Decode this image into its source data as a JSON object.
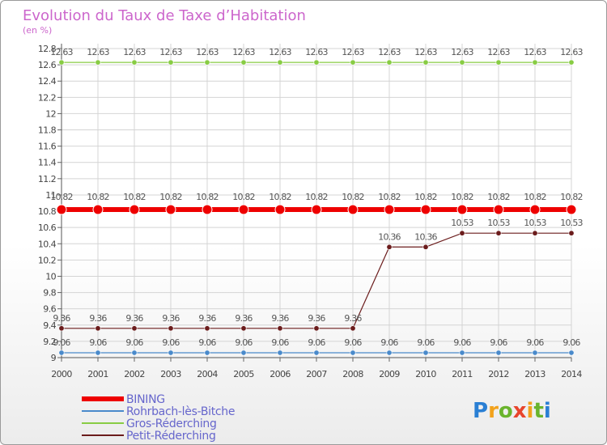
{
  "chart_data": {
    "type": "line",
    "title": "Evolution du Taux de Taxe d’Habitation",
    "subtitle": "(en %)",
    "x": [
      "2000",
      "2001",
      "2002",
      "2003",
      "2004",
      "2005",
      "2006",
      "2007",
      "2008",
      "2009",
      "2010",
      "2011",
      "2012",
      "2013",
      "2014"
    ],
    "ylim": [
      9,
      12.8
    ],
    "yticks": [
      9,
      9.2,
      9.4,
      9.6,
      9.8,
      10,
      10.2,
      10.4,
      10.6,
      10.8,
      11,
      11.2,
      11.4,
      11.6,
      11.8,
      12,
      12.2,
      12.4,
      12.6,
      12.8
    ],
    "ytick_labels": [
      "9",
      "9.2",
      "9.4",
      "9.6",
      "9.8",
      "10",
      "10.2",
      "10.4",
      "10.6",
      "10.8",
      "11",
      "11.2",
      "11.4",
      "11.6",
      "11.8",
      "12",
      "12.2",
      "12.4",
      "12.6",
      "12.8"
    ],
    "series": [
      {
        "name": "Gros-Réderching",
        "color": "#88cc44",
        "values": [
          12.63,
          12.63,
          12.63,
          12.63,
          12.63,
          12.63,
          12.63,
          12.63,
          12.63,
          12.63,
          12.63,
          12.63,
          12.63,
          12.63,
          12.63
        ],
        "labels": [
          "12.63",
          "12.63",
          "12.63",
          "12.63",
          "12.63",
          "12.63",
          "12.63",
          "12.63",
          "12.63",
          "12.63",
          "12.63",
          "12.63",
          "12.63",
          "12.63",
          "12.63"
        ]
      },
      {
        "name": "BINING",
        "color": "#ee0000",
        "values": [
          10.82,
          10.82,
          10.82,
          10.82,
          10.82,
          10.82,
          10.82,
          10.82,
          10.82,
          10.82,
          10.82,
          10.82,
          10.82,
          10.82,
          10.82
        ],
        "labels": [
          "10.82",
          "10.82",
          "10.82",
          "10.82",
          "10.82",
          "10.82",
          "10.82",
          "10.82",
          "10.82",
          "10.82",
          "10.82",
          "10.82",
          "10.82",
          "10.82",
          "10.82"
        ]
      },
      {
        "name": "Petit-Réderching",
        "color": "#6b1c1c",
        "values": [
          9.36,
          9.36,
          9.36,
          9.36,
          9.36,
          9.36,
          9.36,
          9.36,
          9.36,
          10.36,
          10.36,
          10.53,
          10.53,
          10.53,
          10.53
        ],
        "labels": [
          "9.36",
          "9.36",
          "9.36",
          "9.36",
          "9.36",
          "9.36",
          "9.36",
          "9.36",
          "9.36",
          "10.36",
          "10.36",
          "10.53",
          "10.53",
          "10.53",
          "10.53"
        ]
      },
      {
        "name": "Rohrbach-lès-Bitche",
        "color": "#4a8acb",
        "values": [
          9.06,
          9.06,
          9.06,
          9.06,
          9.06,
          9.06,
          9.06,
          9.06,
          9.06,
          9.06,
          9.06,
          9.06,
          9.06,
          9.06,
          9.06
        ],
        "labels": [
          "9.06",
          "9.06",
          "9.06",
          "9.06",
          "9.06",
          "9.06",
          "9.06",
          "9.06",
          "9.06",
          "9.06",
          "9.06",
          "9.06",
          "9.06",
          "9.06",
          "9.06"
        ]
      }
    ],
    "legend": [
      {
        "name": "BINING",
        "color": "#ee0000",
        "thick": true
      },
      {
        "name": "Rohrbach-lès-Bitche",
        "color": "#4a8acb",
        "thick": false
      },
      {
        "name": "Gros-Réderching",
        "color": "#88cc44",
        "thick": false
      },
      {
        "name": "Petit-Réderching",
        "color": "#6b1c1c",
        "thick": false
      }
    ],
    "legend_position": "bottom-left"
  },
  "logo": {
    "text": "Proxiti"
  }
}
